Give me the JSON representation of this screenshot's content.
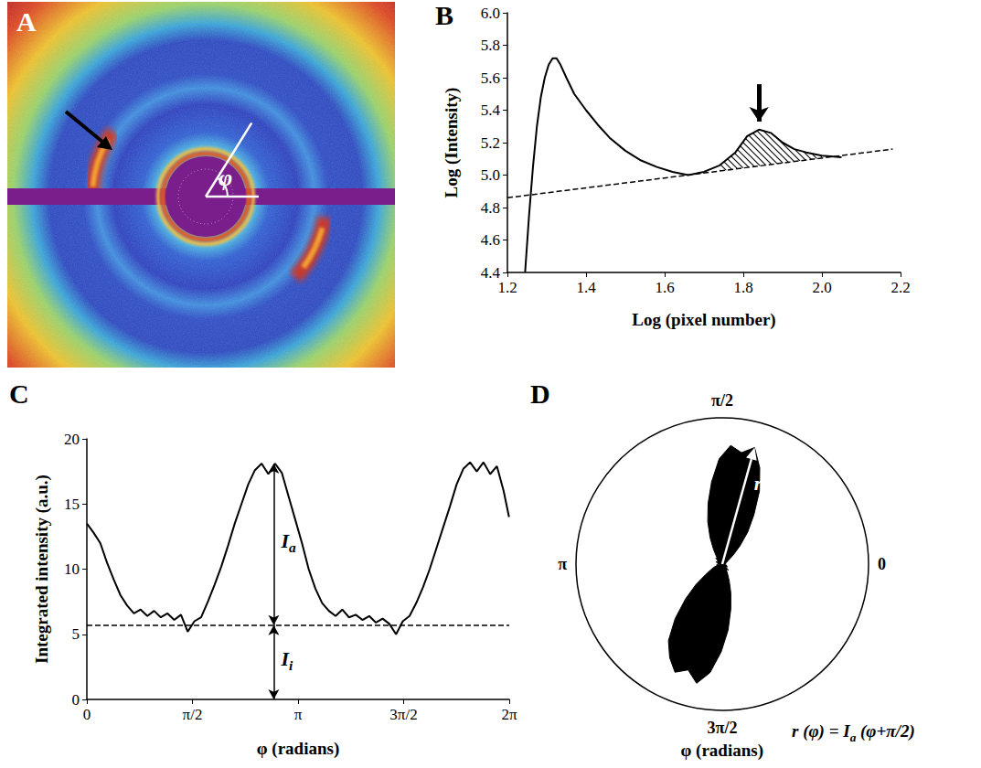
{
  "panel_a": {
    "panel_label": "A",
    "angle_label": "φ"
  },
  "chart_data": [
    {
      "panel_label": "B",
      "type": "line",
      "x_label": "Log (pixel number)",
      "y_label": "Log (Intensity)",
      "x": [
        1.245,
        1.255,
        1.265,
        1.275,
        1.285,
        1.295,
        1.305,
        1.315,
        1.325,
        1.335,
        1.35,
        1.37,
        1.4,
        1.43,
        1.46,
        1.5,
        1.54,
        1.58,
        1.62,
        1.66,
        1.7,
        1.74,
        1.78,
        1.81,
        1.84,
        1.87,
        1.9,
        1.93,
        1.96,
        2.0,
        2.05
      ],
      "series": [
        {
          "values": [
            4.4,
            4.75,
            5.05,
            5.3,
            5.48,
            5.6,
            5.68,
            5.72,
            5.72,
            5.68,
            5.6,
            5.5,
            5.4,
            5.31,
            5.23,
            5.15,
            5.09,
            5.05,
            5.02,
            5.0,
            5.02,
            5.06,
            5.14,
            5.24,
            5.28,
            5.26,
            5.2,
            5.16,
            5.14,
            5.12,
            5.11
          ],
          "color": "#000000"
        },
        {
          "x": [
            1.2,
            2.18
          ],
          "values": [
            4.86,
            5.16
          ],
          "color": "#000000",
          "line_style": "dashed"
        }
      ],
      "hatch_range": [
        1.72,
        2.02
      ],
      "xlim": [
        1.2,
        2.2
      ],
      "xticks": [
        1.2,
        1.4,
        1.6,
        1.8,
        {
          "value": 2,
          "label": "2.0"
        },
        2.2
      ],
      "ylim": [
        4.4,
        6
      ],
      "yticks": [
        4.4,
        4.6,
        4.8,
        {
          "value": 5,
          "label": "5.0"
        },
        5.2,
        5.4,
        5.6,
        5.8,
        {
          "value": 6,
          "label": "6.0"
        }
      ],
      "grid": false
    },
    {
      "panel_label": "C",
      "type": "line",
      "x_label": "φ (radians)",
      "y_label": "Integrated intensity (a.u.)",
      "x": [
        0,
        0.1,
        0.2,
        0.3,
        0.4,
        0.5,
        0.6,
        0.7,
        0.8,
        0.9,
        1.0,
        1.1,
        1.2,
        1.3,
        1.4,
        1.5,
        1.6,
        1.7,
        1.8,
        1.9,
        2.0,
        2.1,
        2.2,
        2.3,
        2.4,
        2.5,
        2.6,
        2.7,
        2.8,
        2.9,
        3.0,
        3.1,
        3.2,
        3.3,
        3.4,
        3.5,
        3.6,
        3.7,
        3.8,
        3.9,
        4.0,
        4.1,
        4.2,
        4.3,
        4.4,
        4.5,
        4.6,
        4.7,
        4.8,
        4.9,
        5.0,
        5.1,
        5.2,
        5.3,
        5.4,
        5.5,
        5.6,
        5.7,
        5.8,
        5.9,
        6.0,
        6.1,
        6.2,
        6.28
      ],
      "series": [
        {
          "values": [
            13.5,
            12.8,
            12.0,
            10.5,
            9.2,
            8.0,
            7.2,
            6.6,
            6.9,
            6.4,
            6.8,
            6.3,
            6.6,
            6.1,
            6.5,
            5.2,
            6.0,
            6.3,
            7.5,
            8.8,
            10.2,
            11.8,
            13.5,
            15.0,
            16.5,
            17.6,
            18.1,
            17.3,
            18.1,
            17.4,
            15.6,
            13.8,
            12.0,
            10.0,
            8.5,
            7.4,
            6.8,
            6.4,
            6.9,
            6.3,
            6.5,
            6.1,
            6.4,
            5.9,
            6.2,
            5.8,
            5.0,
            6.0,
            6.4,
            7.4,
            8.6,
            10.0,
            11.6,
            13.2,
            14.8,
            16.5,
            17.7,
            18.2,
            17.5,
            18.2,
            17.3,
            17.9,
            16.0,
            14.0
          ],
          "color": "#000000"
        }
      ],
      "baseline": 5.7,
      "annotations": [
        {
          "label": [
            {
              "text": "I"
            },
            {
              "text": "a",
              "sub": true
            }
          ],
          "x": 2.78,
          "from": 5.7,
          "to": 18.1
        },
        {
          "label": [
            {
              "text": "I"
            },
            {
              "text": "i",
              "sub": true
            }
          ],
          "x": 2.78,
          "from": 0,
          "to": 5.7
        }
      ],
      "xlim": [
        0,
        6.2832
      ],
      "xticks": [
        0,
        {
          "value": 1.5708,
          "label": "π/2"
        },
        {
          "value": 3.1416,
          "label": "π"
        },
        {
          "value": 4.7124,
          "label": "3π/2"
        },
        {
          "value": 6.2832,
          "label": "2π"
        }
      ],
      "ylim": [
        0,
        20
      ],
      "yticks": [
        0,
        5,
        10,
        15,
        20
      ],
      "grid": false
    },
    {
      "panel_label": "D",
      "type": "polar",
      "x_label": "φ (radians)",
      "x": [
        0,
        0.1,
        0.2,
        0.3,
        0.4,
        0.5,
        0.6,
        0.7,
        0.8,
        0.9,
        1.0,
        1.1,
        1.2,
        1.3,
        1.4,
        1.5,
        1.6,
        1.7,
        1.8,
        1.9,
        2.0,
        2.1,
        2.2,
        2.3,
        2.4,
        2.5,
        2.6,
        2.7,
        2.8,
        2.9,
        3.0,
        3.1,
        3.2,
        3.3,
        3.4,
        3.5,
        3.6,
        3.7,
        3.8,
        3.9,
        4.0,
        4.1,
        4.2,
        4.3,
        4.4,
        4.5,
        4.6,
        4.7,
        4.8,
        4.9,
        5.0,
        5.1,
        5.2,
        5.3,
        5.4,
        5.5,
        5.6,
        5.7,
        5.8,
        5.9,
        6.0,
        6.1,
        6.2,
        6.28
      ],
      "series": [
        {
          "values": [
            0.3,
            0.2,
            0.4,
            0.3,
            0.5,
            0.6,
            0.9,
            1.5,
            2.6,
            4.2,
            6.0,
            8.4,
            10.6,
            12.4,
            11.6,
            12.2,
            10.8,
            8.5,
            6.4,
            4.6,
            3.0,
            1.8,
            1.1,
            0.7,
            0.9,
            0.5,
            0.6,
            0.4,
            0.7,
            0.3,
            0.5,
            0.2,
            0.4,
            0.6,
            0.5,
            0.9,
            1.3,
            2.0,
            3.4,
            5.2,
            7.4,
            9.6,
            11.0,
            12.1,
            11.4,
            12.5,
            11.2,
            9.0,
            6.8,
            4.7,
            3.1,
            1.9,
            1.2,
            0.8,
            0.6,
            0.9,
            0.5,
            0.3,
            0.6,
            0.4,
            0.5,
            0.3,
            0.2,
            0.3
          ],
          "color": "#000000"
        }
      ],
      "xlim": [
        0,
        6.2832
      ],
      "xticks": [
        0,
        {
          "value": 1.5708,
          "label": "π/2"
        },
        {
          "value": 3.1416,
          "label": "π"
        },
        {
          "value": 4.7124,
          "label": "3π/2"
        }
      ],
      "ylim": [
        0,
        15
      ],
      "tick_labels": "x",
      "arrow_label": "r",
      "formula": [
        {
          "text": "r (φ) = I"
        },
        {
          "text": "a",
          "sub": true
        },
        {
          "text": " (φ+π/2)"
        }
      ],
      "grid": false
    }
  ]
}
